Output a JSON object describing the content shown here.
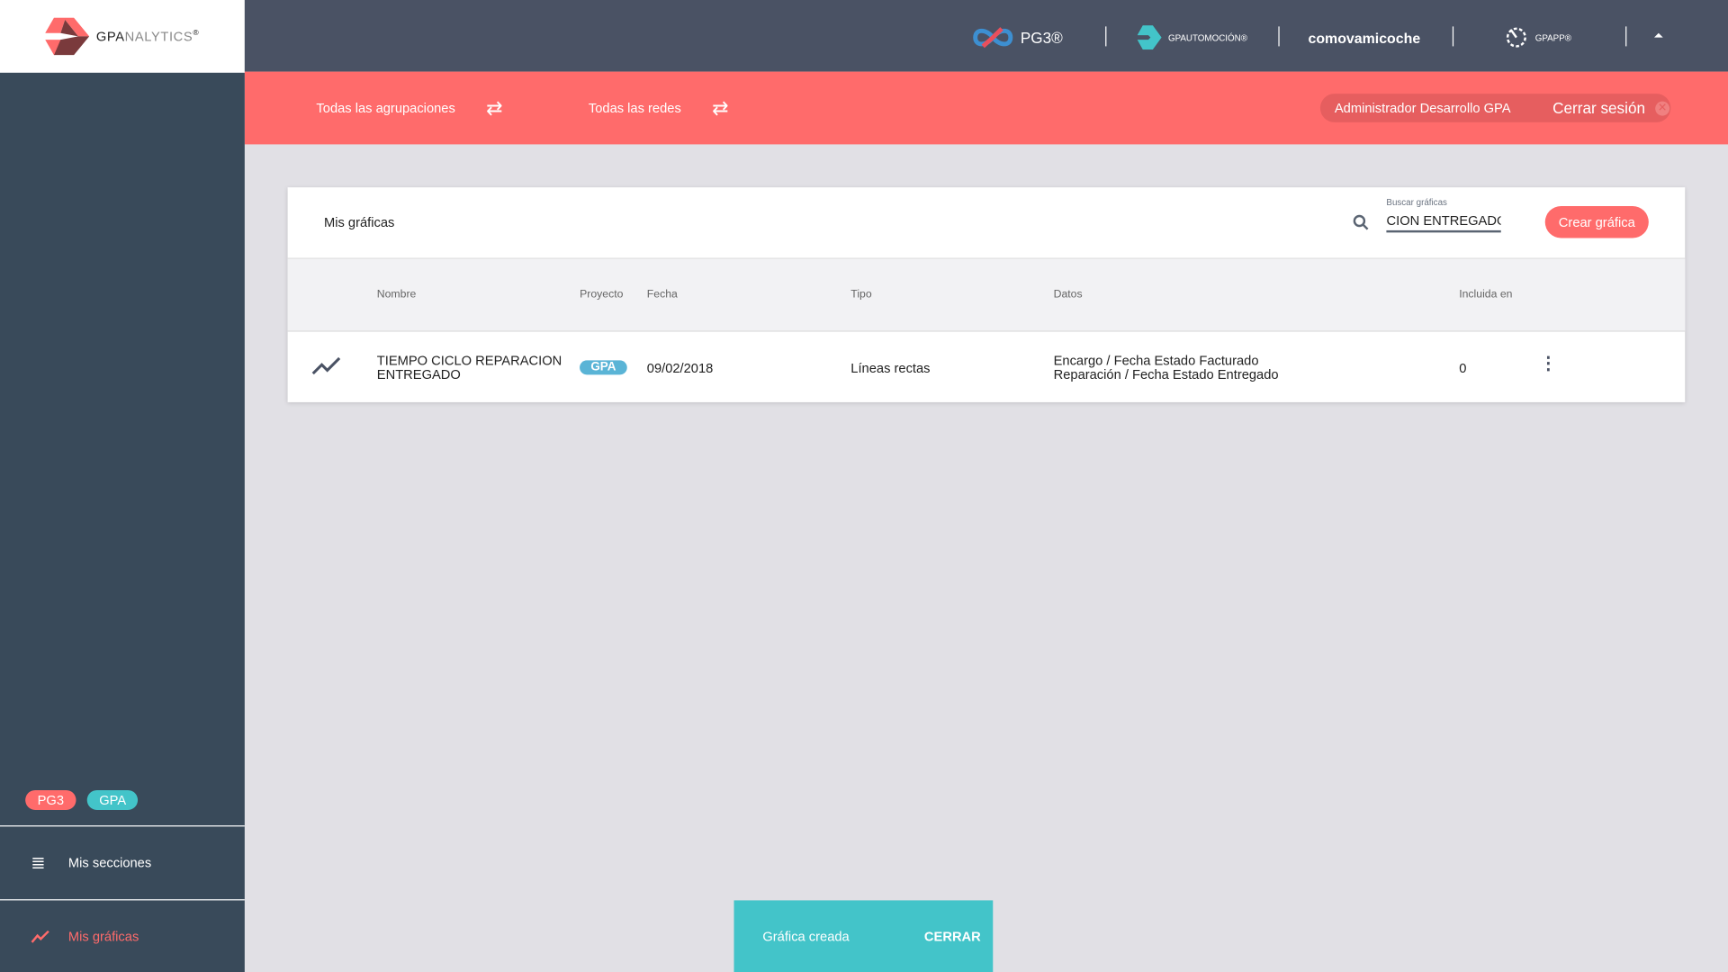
{
  "logo": {
    "brand": "GPA",
    "brand_suffix": "NALYTICS",
    "reg": "®"
  },
  "topbar": {
    "brands": [
      "PG3®",
      "GPAUTOMOCIÓN®",
      "comovamicoche",
      "GPAPP®"
    ],
    "collapse_icon": "caret-up-icon"
  },
  "filters": [
    {
      "label": "Todas las agrupaciones",
      "icon": "swap-icon"
    },
    {
      "label": "Todas las redes",
      "icon": "swap-icon"
    }
  ],
  "user": {
    "name": "Administrador Desarrollo GPA",
    "logout": "Cerrar sesión"
  },
  "card": {
    "title": "Mis gráficas",
    "search": {
      "label": "Buscar gráficas",
      "value": "CION ENTREGADO"
    },
    "create_button": "Crear gráfica",
    "columns": [
      "Nombre",
      "Proyecto",
      "Fecha",
      "Tipo",
      "Datos",
      "Incluida en"
    ],
    "rows": [
      {
        "icon": "line-chart-icon",
        "name": "TIEMPO CICLO REPARACION ENTREGADO",
        "project": "GPA",
        "date": "09/02/2018",
        "type": "Líneas rectas",
        "data": [
          "Encargo / Fecha Estado Facturado",
          "Reparación / Fecha Estado Entregado"
        ],
        "included": "0"
      }
    ]
  },
  "sidebar": {
    "projects": [
      {
        "label": "PG3",
        "color": "#ff6b6b"
      },
      {
        "label": "GPA",
        "color": "#43c4c9"
      }
    ],
    "items": [
      {
        "label": "Mis secciones",
        "icon": "menu-icon"
      },
      {
        "label": "Mis gráficas",
        "icon": "line-chart-icon",
        "active": true
      }
    ]
  },
  "snackbar": {
    "message": "Gráfica creada",
    "action": "CERRAR"
  },
  "colors": {
    "accent": "#ff6b6b",
    "teal": "#43c4c9",
    "sidebar": "#394a5a",
    "topbar": "#4a5264",
    "badge": "#5ab4d6"
  }
}
